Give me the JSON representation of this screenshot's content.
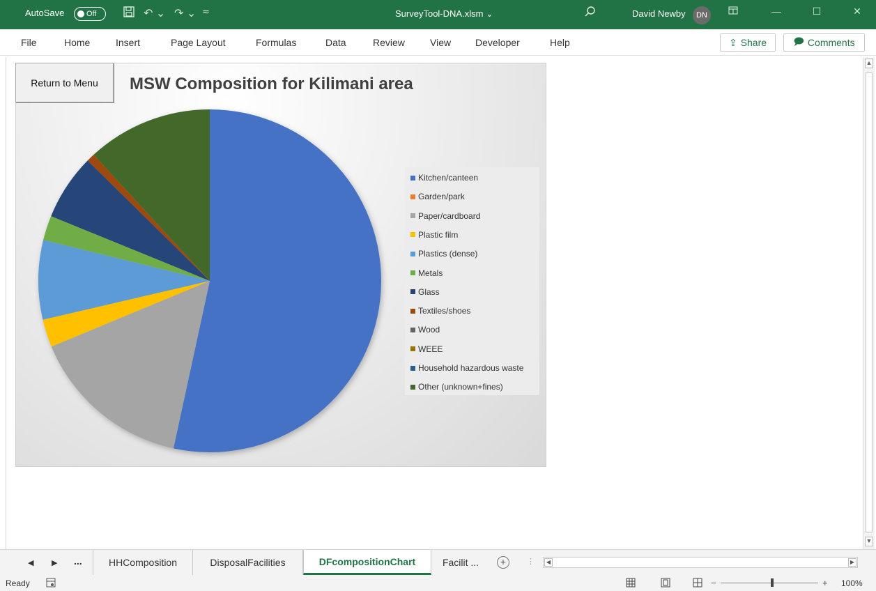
{
  "titlebar": {
    "autosave_label": "AutoSave",
    "autosave_state": "Off",
    "filename": "SurveyTool-DNA.xlsm",
    "user_name": "David Newby",
    "user_initials": "DN"
  },
  "menu": [
    "File",
    "Home",
    "Insert",
    "Page Layout",
    "Formulas",
    "Data",
    "Review",
    "View",
    "Developer",
    "Help"
  ],
  "actions": {
    "share": "Share",
    "comments": "Comments"
  },
  "chart_button": "Return to Menu",
  "chart_data": {
    "type": "pie",
    "title": "MSW Composition for Kilimani area",
    "categories": [
      "Kitchen/canteen",
      "Garden/park",
      "Paper/cardboard",
      "Plastic film",
      "Plastics (dense)",
      "Metals",
      "Glass",
      "Textiles/shoes",
      "Wood",
      "WEEE",
      "Household hazardous waste",
      "Other (unknown+fines)"
    ],
    "values": [
      55.0,
      0.0,
      15.8,
      2.7,
      7.7,
      2.4,
      6.4,
      0.8,
      0.0,
      0.0,
      0.0,
      12.2
    ],
    "colors": [
      "#4472C4",
      "#ED7D31",
      "#A5A5A5",
      "#FFC000",
      "#5B9BD5",
      "#70AD47",
      "#264478",
      "#9E480E",
      "#636363",
      "#997300",
      "#255E91",
      "#43682B"
    ],
    "legend_position": "right"
  },
  "tabs": {
    "sheets": [
      "HHComposition",
      "DisposalFacilities",
      "DFcompositionChart",
      "Facilit ..."
    ],
    "active": "DFcompositionChart",
    "ellipsis": "..."
  },
  "status": {
    "ready": "Ready",
    "zoom": "100%"
  }
}
